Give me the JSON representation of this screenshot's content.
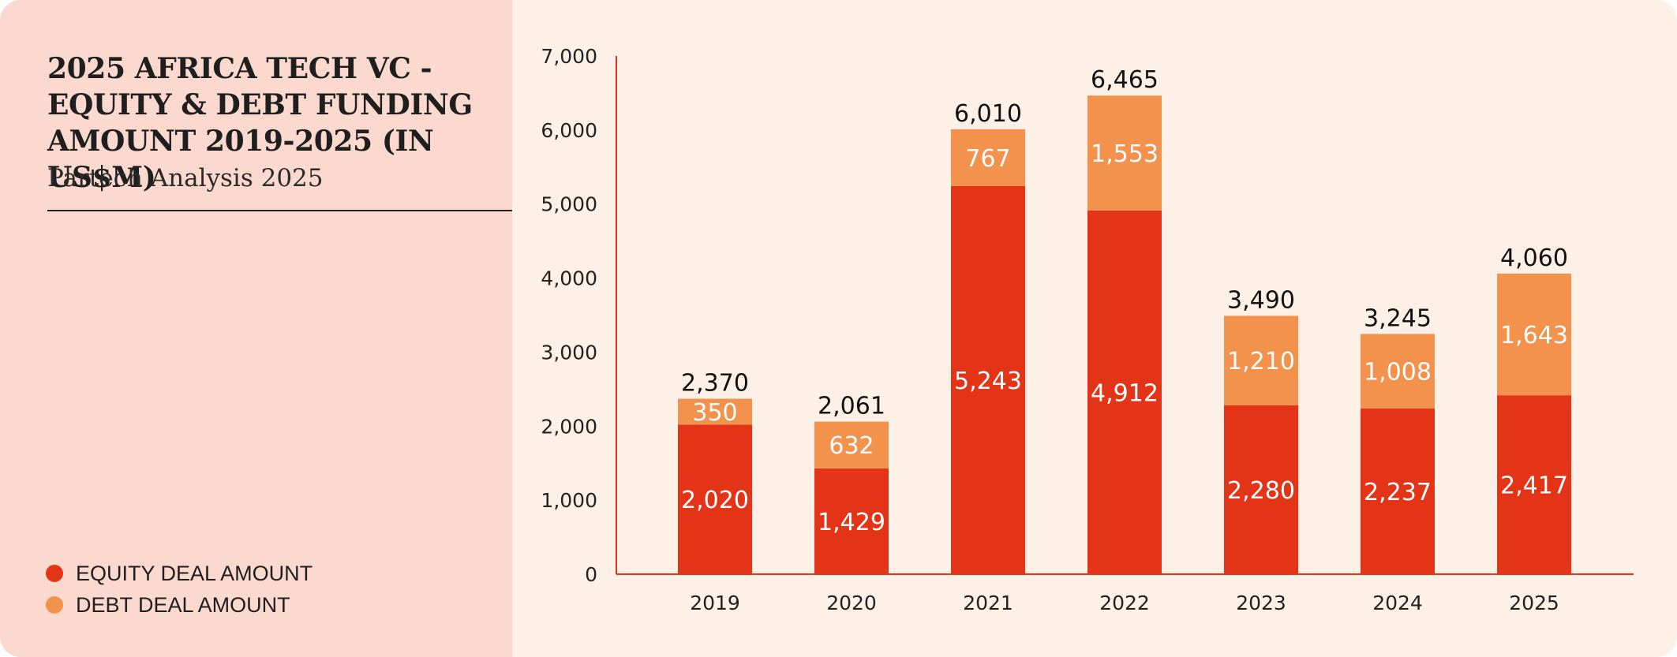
{
  "header": {
    "title": "2025 AFRICA TECH VC - EQUITY & DEBT FUNDING AMOUNT 2019-2025 (IN US$M)",
    "subtitle": "Partech Analysis 2025"
  },
  "legend": {
    "equity_label": "EQUITY DEAL AMOUNT",
    "debt_label": "DEBT DEAL AMOUNT"
  },
  "colors": {
    "equity": "#e33417",
    "debt": "#f2924c",
    "axis": "#e33417",
    "left_panel": "#fbd9cf",
    "chart_bg": "#fdf0e6"
  },
  "chart_data": {
    "type": "bar",
    "stacked": true,
    "title": "2025 AFRICA TECH VC - EQUITY & DEBT FUNDING AMOUNT 2019-2025 (IN US$M)",
    "xlabel": "",
    "ylabel": "",
    "categories": [
      "2019",
      "2020",
      "2021",
      "2022",
      "2023",
      "2024",
      "2025"
    ],
    "series": [
      {
        "name": "EQUITY DEAL AMOUNT",
        "values": [
          2020,
          1429,
          5243,
          4912,
          2280,
          2237,
          2417
        ]
      },
      {
        "name": "DEBT DEAL AMOUNT",
        "values": [
          350,
          632,
          767,
          1553,
          1210,
          1008,
          1643
        ]
      }
    ],
    "value_labels": {
      "equity": [
        "2,020",
        "1,429",
        "5,243",
        "4,912",
        "2,280",
        "2,237",
        "2,417"
      ],
      "debt": [
        "350",
        "632",
        "767",
        "1,553",
        "1,210",
        "1,008",
        "1,643"
      ]
    },
    "totals": [
      2370,
      2061,
      6010,
      6465,
      3490,
      3245,
      4060
    ],
    "total_labels": [
      "2,370",
      "2,061",
      "6,010",
      "6,465",
      "3,490",
      "3,245",
      "4,060"
    ],
    "ylim": [
      0,
      7000
    ],
    "yticks": [
      0,
      1000,
      2000,
      3000,
      4000,
      5000,
      6000,
      7000
    ],
    "ytick_labels": [
      "0",
      "1,000",
      "2,000",
      "3,000",
      "4,000",
      "5,000",
      "6,000",
      "7,000"
    ],
    "grid": false,
    "legend_position": "bottom-left"
  }
}
